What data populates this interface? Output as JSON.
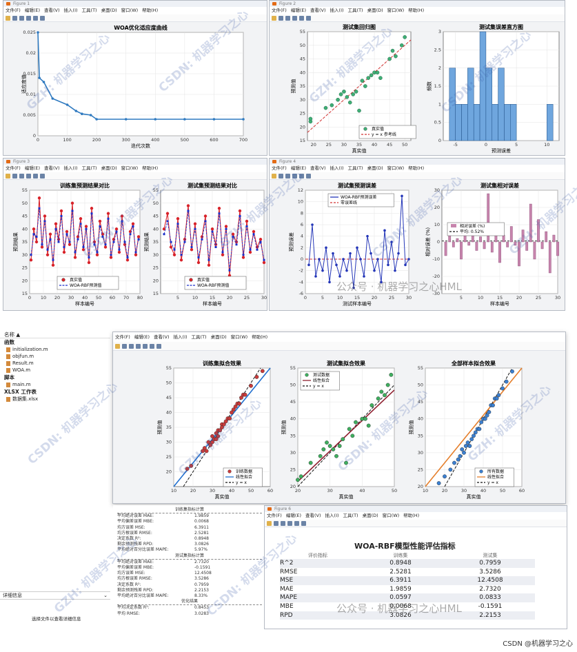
{
  "fig1": {
    "title": "Figure 1",
    "menu": [
      "文件(F)",
      "编辑(E)",
      "查看(V)",
      "插入(I)",
      "工具(T)",
      "桌面(D)",
      "窗口(W)",
      "帮助(H)"
    ],
    "chart_data": {
      "type": "line",
      "title": "WOA优化适应度曲线",
      "xlabel": "迭代次数",
      "ylabel": "适应度值",
      "xlim": [
        0,
        700
      ],
      "ylim": [
        0,
        0.025
      ],
      "x": [
        0,
        5,
        20,
        50,
        100,
        130,
        150,
        180,
        200,
        300,
        400,
        500,
        600,
        700
      ],
      "y": [
        0.025,
        0.014,
        0.013,
        0.009,
        0.0075,
        0.006,
        0.0053,
        0.005,
        0.004,
        0.004,
        0.004,
        0.004,
        0.004,
        0.004
      ],
      "xticks": [
        "0",
        "100",
        "200",
        "300",
        "400",
        "500",
        "600",
        "700"
      ],
      "yticks": [
        "0",
        "0.005",
        "0.01",
        "0.015",
        "0.02",
        "0.025"
      ]
    }
  },
  "fig2": {
    "title": "Figure 2",
    "menu": [
      "文件(F)",
      "编辑(E)",
      "查看(V)",
      "插入(I)",
      "工具(T)",
      "桌面(D)",
      "窗口(W)",
      "帮助(H)"
    ],
    "chart_data": [
      {
        "type": "scatter",
        "title": "测试集回归图",
        "xlabel": "真实值",
        "ylabel": "预测值",
        "xlim": [
          18,
          52
        ],
        "ylim": [
          15,
          55
        ],
        "xticks": [
          "20",
          "25",
          "30",
          "35",
          "40",
          "45",
          "50"
        ],
        "yticks": [
          "15",
          "20",
          "25",
          "30",
          "35",
          "40",
          "45",
          "50",
          "55"
        ],
        "legend": [
          "真实值",
          "y = x 参考线"
        ],
        "x": [
          19,
          19,
          24,
          26,
          28,
          29,
          30,
          31,
          32,
          33,
          34,
          35,
          36,
          37,
          38,
          39,
          40,
          41,
          42,
          45,
          46,
          47,
          49,
          50
        ],
        "y": [
          22,
          23,
          27,
          28,
          30,
          32,
          33,
          31,
          29,
          32,
          33,
          26,
          37,
          35,
          38,
          39,
          40,
          40,
          38,
          45,
          48,
          46,
          50,
          53
        ]
      },
      {
        "type": "bar",
        "title": "测试集误差直方图",
        "xlabel": "预测误差",
        "ylabel": "频数",
        "xlim": [
          -7,
          12
        ],
        "ylim": [
          0,
          3
        ],
        "xticks": [
          "-5",
          "0",
          "5",
          "10"
        ],
        "yticks": [
          "0",
          "0.5",
          "1",
          "1.5",
          "2",
          "2.5",
          "3"
        ],
        "x": [
          -5.5,
          -4.5,
          -3.5,
          -2.5,
          -1.5,
          -0.5,
          0.5,
          1.5,
          2.5,
          3.5,
          4.5,
          10.5
        ],
        "values": [
          2,
          1,
          1,
          2,
          1,
          3,
          2,
          1,
          2,
          1,
          1,
          1
        ]
      }
    ]
  },
  "fig3": {
    "title": "Figure 3",
    "menu": [
      "文件(F)",
      "编辑(E)",
      "查看(V)",
      "插入(I)",
      "工具(T)",
      "桌面(D)",
      "窗口(W)",
      "帮助(H)"
    ],
    "chart_data": [
      {
        "type": "line",
        "title": "训练集预测结果对比",
        "xlabel": "样本编号",
        "ylabel": "预测结果",
        "xlim": [
          0,
          80
        ],
        "ylim": [
          15,
          55
        ],
        "xticks": [
          "0",
          "10",
          "20",
          "30",
          "40",
          "50",
          "60",
          "70",
          "80"
        ],
        "yticks": [
          "15",
          "20",
          "25",
          "30",
          "35",
          "40",
          "45",
          "50",
          "55"
        ],
        "legend": [
          "真实值",
          "WOA-RBF预测值"
        ],
        "series": [
          {
            "name": "真实值",
            "values": [
              28,
              40,
              35,
              52,
              33,
              45,
              30,
              38,
              26,
              42,
              36,
              47,
              31,
              39,
              34,
              50,
              29,
              37,
              44,
              32,
              41,
              27,
              48,
              35,
              30,
              43,
              38,
              33,
              46,
              29,
              36,
              40,
              31,
              45,
              34,
              28,
              39,
              42,
              30,
              37
            ]
          },
          {
            "name": "WOA-RBF预测值",
            "values": [
              30,
              38,
              37,
              48,
              34,
              43,
              32,
              36,
              28,
              40,
              35,
              45,
              33,
              38,
              35,
              47,
              31,
              36,
              42,
              33,
              40,
              29,
              46,
              34,
              31,
              41,
              37,
              34,
              44,
              30,
              35,
              39,
              32,
              43,
              35,
              29,
              38,
              41,
              31,
              36
            ]
          }
        ]
      },
      {
        "type": "line",
        "title": "测试集预测结果对比",
        "xlabel": "样本编号",
        "ylabel": "预测结果",
        "xlim": [
          0,
          30
        ],
        "ylim": [
          15,
          55
        ],
        "xticks": [
          "5",
          "10",
          "15",
          "20",
          "25",
          "30"
        ],
        "yticks": [
          "15",
          "20",
          "25",
          "30",
          "35",
          "40",
          "45",
          "50",
          "55"
        ],
        "legend": [
          "真实值",
          "WOA-RBF预测值"
        ],
        "series": [
          {
            "name": "真实值",
            "values": [
              40,
              46,
              33,
              30,
              44,
              28,
              36,
              49,
              32,
              42,
              27,
              37,
              45,
              26,
              40,
              34,
              48,
              30,
              41,
              22,
              38,
              35,
              47,
              29,
              43,
              31,
              39,
              33,
              36,
              27
            ]
          },
          {
            "name": "WOA-RBF预测值",
            "values": [
              38,
              43,
              35,
              32,
              42,
              30,
              35,
              47,
              33,
              40,
              29,
              36,
              43,
              28,
              39,
              33,
              46,
              31,
              40,
              24,
              37,
              34,
              45,
              30,
              41,
              32,
              38,
              32,
              35,
              28
            ]
          }
        ]
      }
    ]
  },
  "fig4": {
    "title": "Figure 4",
    "menu": [
      "文件(F)",
      "编辑(E)",
      "查看(V)",
      "插入(I)",
      "工具(T)",
      "桌面(D)",
      "窗口(W)",
      "帮助(H)"
    ],
    "chart_data": [
      {
        "type": "line",
        "title": "测试集预测误差",
        "xlabel": "测试样本编号",
        "ylabel": "预测误差",
        "xlim": [
          0,
          30
        ],
        "ylim": [
          -6,
          12
        ],
        "xticks": [
          "0",
          "5",
          "10",
          "15",
          "20",
          "25",
          "30"
        ],
        "yticks": [
          "-6",
          "-4",
          "-2",
          "0",
          "2",
          "4",
          "6",
          "8",
          "10",
          "12"
        ],
        "legend": [
          "WOA-RBF预测误差",
          "零误差线"
        ],
        "values": [
          -1,
          6,
          -3,
          0,
          -2,
          2,
          -4,
          1,
          -1,
          -3,
          0,
          -2,
          1,
          -5,
          2,
          0,
          -3,
          4,
          1,
          -2,
          0,
          -4,
          5,
          -1,
          3,
          -2,
          1,
          11,
          -1,
          0
        ]
      },
      {
        "type": "bar",
        "title": "测试集相对误差",
        "xlabel": "样本编号",
        "ylabel": "相对误差 (%)",
        "xlim": [
          0,
          30
        ],
        "ylim": [
          -30,
          30
        ],
        "xticks": [
          "5",
          "10",
          "15",
          "20",
          "25",
          "30"
        ],
        "yticks": [
          "-30",
          "-20",
          "-10",
          "0",
          "10",
          "20",
          "30"
        ],
        "legend": [
          "相对误差 (%)",
          "平均: 0.52%"
        ],
        "values": [
          -8,
          5,
          -3,
          2,
          -10,
          6,
          -2,
          10,
          -5,
          3,
          -4,
          28,
          -6,
          8,
          -12,
          4,
          -3,
          9,
          -2,
          -14,
          7,
          -5,
          22,
          -10,
          13,
          -4,
          6,
          -18,
          4,
          -8
        ]
      }
    ]
  },
  "watermark": {
    "csdn": "CSDN: 机器学习之心",
    "gzh": "GZH: 机器学习之心",
    "wechat": "公众号 · 机器学习之心HML",
    "footer": "CSDN @机器学习之心"
  },
  "fig5": {
    "menu": [
      "文件(F)",
      "编辑(E)",
      "查看(V)",
      "插入(I)",
      "工具(T)",
      "桌面(D)",
      "窗口(W)",
      "帮助(H)"
    ],
    "chart_data": [
      {
        "type": "scatter",
        "title": "训练集拟合效果",
        "xlabel": "真实值",
        "ylabel": "预测值",
        "xlim": [
          10,
          60
        ],
        "ylim": [
          15,
          55
        ],
        "xticks": [
          "10",
          "20",
          "30",
          "40",
          "50",
          "60"
        ],
        "yticks": [
          "20",
          "25",
          "30",
          "35",
          "40",
          "45",
          "50",
          "55"
        ],
        "legend": [
          "训练数据",
          "线性拟合",
          "y = x"
        ],
        "x": [
          17,
          19,
          25,
          26,
          27,
          28,
          29,
          30,
          30,
          31,
          32,
          32,
          33,
          33,
          34,
          35,
          35,
          36,
          37,
          38,
          39,
          40,
          41,
          42,
          43,
          44,
          45,
          46,
          47,
          50,
          53,
          56
        ],
        "y": [
          21,
          22,
          27,
          28,
          27,
          30,
          29,
          32,
          30,
          31,
          33,
          31,
          34,
          32,
          34,
          36,
          35,
          36,
          37,
          38,
          38,
          40,
          41,
          42,
          43,
          43,
          45,
          46,
          46,
          49,
          52,
          54
        ]
      },
      {
        "type": "scatter",
        "title": "测试集拟合效果",
        "xlabel": "真实值",
        "ylabel": "预测值",
        "xlim": [
          20,
          50
        ],
        "ylim": [
          20,
          55
        ],
        "xticks": [
          "20",
          "30",
          "40",
          "50"
        ],
        "yticks": [
          "20",
          "25",
          "30",
          "35",
          "40",
          "45",
          "50",
          "55"
        ],
        "legend": [
          "测试数据",
          "线性拟合",
          "y = x"
        ],
        "x": [
          20,
          21,
          24,
          27,
          28,
          29,
          30,
          31,
          32,
          33,
          34,
          35,
          36,
          37,
          38,
          40,
          41,
          42,
          43,
          45,
          46,
          47,
          48,
          49
        ],
        "y": [
          22,
          23,
          27,
          29,
          31,
          33,
          32,
          31,
          29,
          32,
          34,
          27,
          37,
          35,
          39,
          40,
          40,
          38,
          44,
          46,
          48,
          47,
          50,
          53
        ]
      },
      {
        "type": "scatter",
        "title": "全部样本拟合效果",
        "xlabel": "真实值",
        "ylabel": "预测值",
        "xlim": [
          10,
          60
        ],
        "ylim": [
          20,
          55
        ],
        "xticks": [
          "10",
          "20",
          "30",
          "40",
          "50",
          "60"
        ],
        "yticks": [
          "20",
          "25",
          "30",
          "35",
          "40",
          "45",
          "50",
          "55"
        ],
        "legend": [
          "所有数据",
          "线性拟合",
          "y = x"
        ],
        "x": [
          17,
          20,
          23,
          25,
          27,
          28,
          29,
          30,
          31,
          32,
          33,
          34,
          35,
          36,
          37,
          38,
          39,
          40,
          41,
          42,
          43,
          44,
          45,
          46,
          47,
          48,
          50,
          52,
          55
        ],
        "y": [
          21,
          23,
          25,
          27,
          28,
          29,
          31,
          30,
          32,
          33,
          32,
          34,
          35,
          36,
          37,
          37,
          39,
          40,
          40,
          41,
          42,
          44,
          44,
          46,
          46,
          47,
          49,
          51,
          54
        ]
      }
    ]
  },
  "sidebar": {
    "name_header": "名称 ▲",
    "sec_functions": "函数",
    "functions": [
      "initialization.m",
      "objfun.m",
      "Result.m",
      "WOA.m"
    ],
    "sec_scripts": "脚本",
    "scripts": [
      "main.m"
    ],
    "sec_xlsx": "XLSX 工作表",
    "xlsx": [
      "数据集.xlsx"
    ],
    "details_label": "详细信息",
    "details_hint": "选择文件以查看详细信息"
  },
  "console": {
    "train_header": "训练集指标计算",
    "train_rows": [
      [
        "平均绝对误差 MAE:",
        "1.9859"
      ],
      [
        "平均偏差误差 MBE:",
        "0.0068"
      ],
      [
        "均方误差 MSE:",
        "6.3911"
      ],
      [
        "均方根误差 RMSE:",
        "2.5281"
      ],
      [
        "决定系数 R²:",
        "0.8948"
      ],
      [
        "剩余预测残差 RPD:",
        "3.0826"
      ],
      [
        "平均绝对百分比误差 MAPE:",
        "5.97%"
      ]
    ],
    "test_header": "测试集指标计算",
    "test_rows": [
      [
        "平均绝对误差 MAE:",
        "2.7320"
      ],
      [
        "平均偏差误差 MBE:",
        "-0.1591"
      ],
      [
        "均方误差 MSE:",
        "12.4508"
      ],
      [
        "均方根误差 RMSE:",
        "3.5286"
      ],
      [
        "决定系数 R²:",
        "0.7959"
      ],
      [
        "剩余预测残差 RPD:",
        "2.2153"
      ],
      [
        "平均绝对百分比误差 MAPE:",
        "8.33%"
      ]
    ],
    "opt_header": "优化结果",
    "opt_rows": [
      [
        "平均决定系数 R²:",
        "0.8453"
      ],
      [
        "平均 RMSE:",
        "3.0283"
      ]
    ]
  },
  "fig6": {
    "title": "Figure 6",
    "menu": [
      "文件(F)",
      "编辑(E)",
      "查看(V)",
      "插入(I)",
      "工具(T)",
      "桌面(D)",
      "窗口(W)",
      "帮助(H)"
    ],
    "table_title": "WOA-RBF模型性能评估指标",
    "headers": [
      "评价指标",
      "训练集",
      "测试集"
    ],
    "rows": [
      [
        "R^2",
        "0.8948",
        "0.7959"
      ],
      [
        "RMSE",
        "2.5281",
        "3.5286"
      ],
      [
        "MSE",
        "6.3911",
        "12.4508"
      ],
      [
        "MAE",
        "1.9859",
        "2.7320"
      ],
      [
        "MAPE",
        "0.0597",
        "0.0833"
      ],
      [
        "MBE",
        "0.0068",
        "-0.1591"
      ],
      [
        "RPD",
        "3.0826",
        "2.2153"
      ]
    ]
  }
}
